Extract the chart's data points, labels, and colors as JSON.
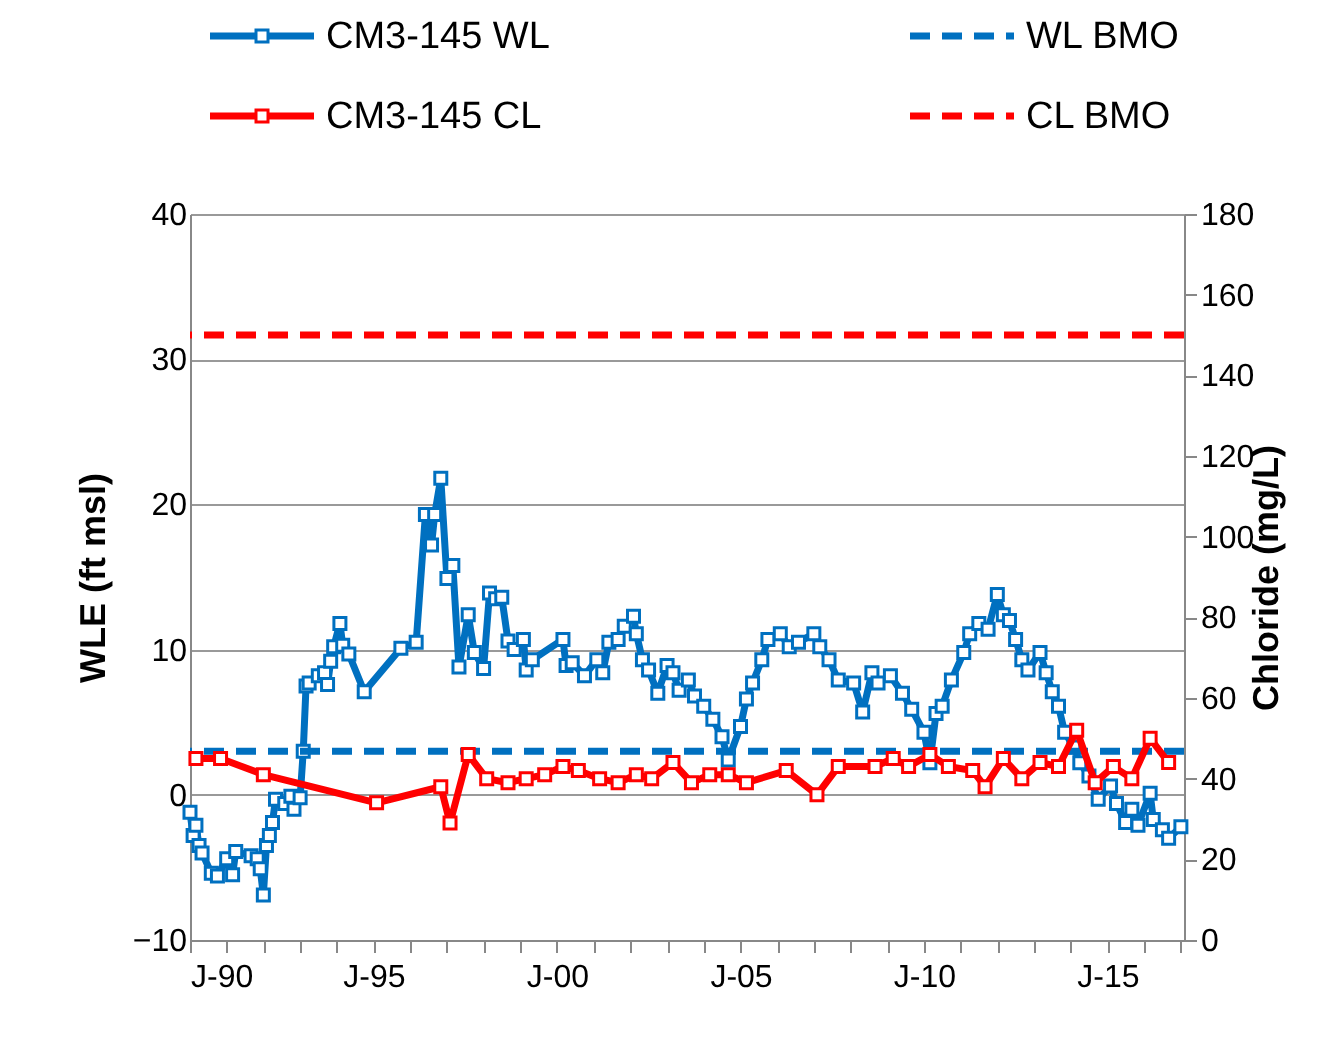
{
  "chart_data": {
    "type": "line",
    "ylabel": "WLE (ft msl)",
    "y2label": "Chloride (mg/L)",
    "legend": "top",
    "grid": "y",
    "marker": "square",
    "xlim": [
      "1990-01",
      "2017-02"
    ],
    "xticks": [
      {
        "value": "1990-01",
        "label": "J-90"
      },
      {
        "value": "1991-01",
        "label": null
      },
      {
        "value": "1992-01",
        "label": null
      },
      {
        "value": "1993-01",
        "label": null
      },
      {
        "value": "1994-01",
        "label": null
      },
      {
        "value": "1995-01",
        "label": "J-95"
      },
      {
        "value": "1996-01",
        "label": null
      },
      {
        "value": "1997-01",
        "label": null
      },
      {
        "value": "1998-01",
        "label": null
      },
      {
        "value": "1999-01",
        "label": null
      },
      {
        "value": "2000-01",
        "label": "J-00"
      },
      {
        "value": "2001-01",
        "label": null
      },
      {
        "value": "2002-01",
        "label": null
      },
      {
        "value": "2003-01",
        "label": null
      },
      {
        "value": "2004-01",
        "label": null
      },
      {
        "value": "2005-01",
        "label": "J-05"
      },
      {
        "value": "2006-01",
        "label": null
      },
      {
        "value": "2007-01",
        "label": null
      },
      {
        "value": "2008-01",
        "label": null
      },
      {
        "value": "2009-01",
        "label": null
      },
      {
        "value": "2010-01",
        "label": "J-10"
      },
      {
        "value": "2011-01",
        "label": null
      },
      {
        "value": "2012-01",
        "label": null
      },
      {
        "value": "2013-01",
        "label": null
      },
      {
        "value": "2014-01",
        "label": null
      },
      {
        "value": "2015-01",
        "label": "J-15"
      },
      {
        "value": "2016-01",
        "label": null
      },
      {
        "value": "2017-01",
        "label": null
      }
    ],
    "ylim": [
      -10,
      40
    ],
    "yticks": [
      -10,
      0,
      10,
      20,
      30,
      40
    ],
    "y2lim": [
      0,
      180
    ],
    "y2ticks": [
      0,
      20,
      40,
      60,
      80,
      100,
      120,
      140,
      160,
      180
    ],
    "series": [
      {
        "name": "CM3-145 WL",
        "color": "#0070c0",
        "axis": "y",
        "line_style": "solid",
        "x": [
          "1990-01",
          "1990-02",
          "1990-03",
          "1990-04",
          "1990-05",
          "1990-08",
          "1990-10",
          "1991-01",
          "1991-03",
          "1991-04",
          "1991-09",
          "1991-11",
          "1991-12",
          "1992-01",
          "1992-02",
          "1992-03",
          "1992-04",
          "1992-05",
          "1992-08",
          "1992-10",
          "1992-11",
          "1993-01",
          "1993-02",
          "1993-03",
          "1993-04",
          "1993-07",
          "1993-09",
          "1993-10",
          "1993-11",
          "1993-12",
          "1994-02",
          "1994-03",
          "1994-05",
          "1994-10",
          "1995-10",
          "1996-03",
          "1996-06",
          "1996-08",
          "1996-09",
          "1996-11",
          "1997-01",
          "1997-03",
          "1997-05",
          "1997-08",
          "1997-10",
          "1998-01",
          "1998-03",
          "1998-05",
          "1998-07",
          "1998-09",
          "1998-11",
          "1999-02",
          "1999-03",
          "1999-05",
          "2000-03",
          "2000-04",
          "2000-06",
          "2000-10",
          "2001-02",
          "2001-04",
          "2001-06",
          "2001-09",
          "2001-11",
          "2002-02",
          "2002-03",
          "2002-05",
          "2002-07",
          "2002-10",
          "2003-01",
          "2003-03",
          "2003-05",
          "2003-08",
          "2003-10",
          "2004-01",
          "2004-04",
          "2004-07",
          "2004-09",
          "2005-01",
          "2005-03",
          "2005-05",
          "2005-08",
          "2005-10",
          "2006-02",
          "2006-05",
          "2006-08",
          "2007-01",
          "2007-03",
          "2007-06",
          "2007-09",
          "2008-02",
          "2008-05",
          "2008-08",
          "2008-10",
          "2009-02",
          "2009-06",
          "2009-09",
          "2010-01",
          "2010-03",
          "2010-05",
          "2010-07",
          "2010-10",
          "2011-02",
          "2011-04",
          "2011-07",
          "2011-10",
          "2012-01",
          "2012-03",
          "2012-05",
          "2012-07",
          "2012-09",
          "2012-11",
          "2013-03",
          "2013-05",
          "2013-07",
          "2013-09",
          "2013-11",
          "2014-02",
          "2014-04",
          "2014-07",
          "2014-10",
          "2015-02",
          "2015-04",
          "2015-07",
          "2015-09",
          "2015-11",
          "2016-03",
          "2016-04",
          "2016-07",
          "2016-09",
          "2017-01"
        ],
        "values": [
          -1.2,
          -2.8,
          -2.1,
          -3.5,
          -4.0,
          -5.4,
          -5.6,
          -4.4,
          -5.5,
          -3.9,
          -4.2,
          -4.4,
          -5.1,
          -6.9,
          -3.5,
          -2.8,
          -1.9,
          -0.3,
          -0.6,
          -0.1,
          -1.0,
          -0.2,
          3.0,
          7.5,
          7.7,
          8.2,
          8.4,
          7.6,
          9.2,
          10.2,
          11.8,
          10.3,
          9.7,
          7.1,
          10.1,
          10.5,
          19.3,
          17.2,
          19.3,
          21.8,
          14.9,
          15.8,
          8.8,
          12.4,
          9.8,
          8.7,
          13.9,
          13.5,
          13.6,
          10.6,
          10.0,
          10.7,
          8.6,
          9.3,
          10.7,
          8.9,
          9.1,
          8.2,
          9.3,
          8.4,
          10.5,
          10.7,
          11.6,
          12.3,
          11.1,
          9.3,
          8.6,
          7.0,
          8.9,
          8.4,
          7.2,
          7.9,
          6.8,
          6.1,
          5.2,
          4.0,
          2.4,
          4.7,
          6.6,
          7.7,
          9.3,
          10.7,
          11.1,
          10.2,
          10.5,
          11.1,
          10.2,
          9.3,
          7.9,
          7.7,
          5.7,
          8.4,
          7.7,
          8.2,
          7.0,
          5.9,
          4.3,
          2.2,
          5.6,
          6.1,
          7.9,
          9.8,
          11.1,
          11.8,
          11.4,
          13.8,
          12.4,
          12.0,
          10.7,
          9.3,
          8.6,
          9.8,
          8.4,
          7.1,
          6.1,
          4.3,
          3.3,
          2.2,
          1.3,
          -0.3,
          0.6,
          -0.6,
          -1.9,
          -1.0,
          -2.1,
          0.1,
          -1.7,
          -2.4,
          -3.0,
          -2.2
        ]
      },
      {
        "name": "CM3-145 CL",
        "color": "#ff0000",
        "axis": "y2",
        "line_style": "solid",
        "x": [
          "1990-03",
          "1990-11",
          "1992-01",
          "1995-02",
          "1996-11",
          "1997-02",
          "1997-08",
          "1998-02",
          "1998-09",
          "1999-03",
          "1999-09",
          "2000-03",
          "2000-08",
          "2001-03",
          "2001-09",
          "2002-03",
          "2002-08",
          "2003-03",
          "2003-09",
          "2004-03",
          "2004-09",
          "2005-03",
          "2006-04",
          "2007-02",
          "2007-09",
          "2008-09",
          "2009-03",
          "2009-08",
          "2010-03",
          "2010-09",
          "2011-05",
          "2011-09",
          "2012-03",
          "2012-09",
          "2013-03",
          "2013-09",
          "2014-03",
          "2014-09",
          "2015-03",
          "2015-09",
          "2016-03",
          "2016-09"
        ],
        "values": [
          45,
          45,
          41,
          34,
          38,
          29,
          46,
          40,
          39,
          40,
          41,
          43,
          42,
          40,
          39,
          41,
          40,
          44,
          39,
          41,
          41,
          39,
          42,
          36,
          43,
          43,
          45,
          43,
          46,
          43,
          42,
          38,
          45,
          40,
          44,
          43,
          52,
          39,
          43,
          40,
          50,
          44
        ]
      }
    ],
    "ref_lines": [
      {
        "axis": "y",
        "value": 3,
        "label": "WL BMO",
        "color": "#0070c0",
        "line_style": "dashed"
      },
      {
        "axis": "y2",
        "value": 150,
        "label": "CL BMO",
        "color": "#ff0000",
        "line_style": "dashed"
      }
    ]
  }
}
